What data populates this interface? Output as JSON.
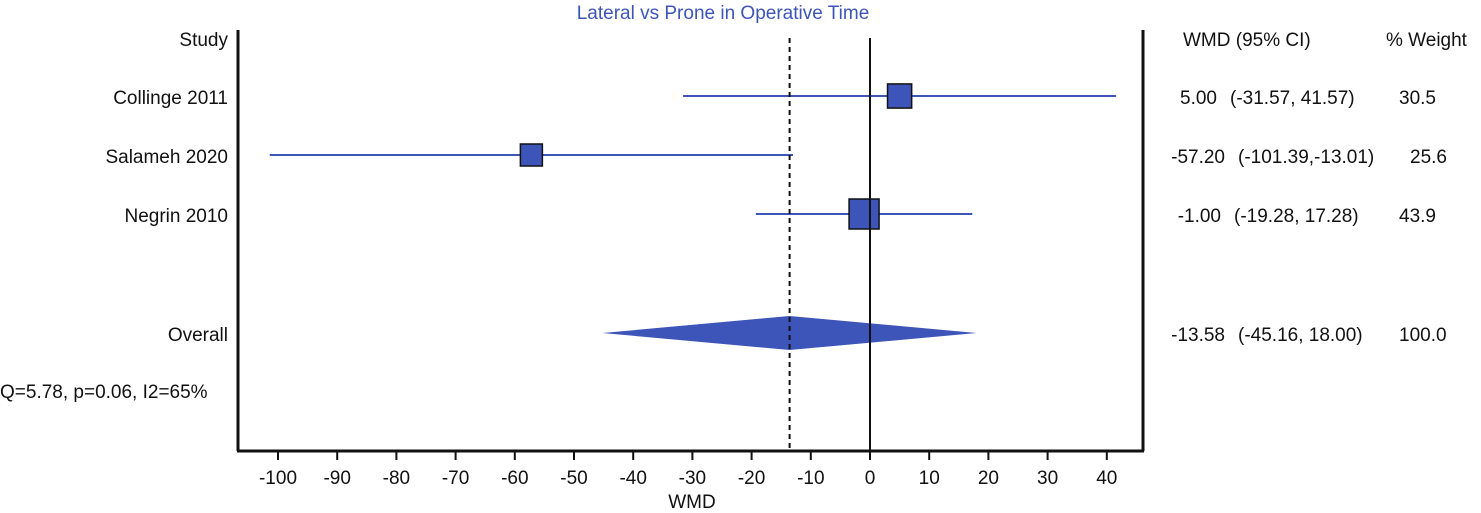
{
  "chart_data": {
    "type": "forest",
    "title": "Lateral vs Prone in Operative Time",
    "xlabel": "WMD",
    "xlim": [
      -110,
      45
    ],
    "xticks": [
      -100,
      -90,
      -80,
      -70,
      -60,
      -50,
      -40,
      -30,
      -20,
      -10,
      0,
      10,
      20,
      30,
      40
    ],
    "null_line": 0,
    "pooled_line": -13.58,
    "columns": {
      "study": "Study",
      "effect": "WMD (95% CI)",
      "weight": "% Weight"
    },
    "studies": [
      {
        "name": "Collinge 2011",
        "wmd": 5.0,
        "lower": -31.57,
        "upper": 41.57,
        "effect_text": "5.00",
        "ci_text": "(-31.57, 41.57)",
        "weight": 30.5,
        "weight_text": "30.5"
      },
      {
        "name": "Salameh 2020",
        "wmd": -57.2,
        "lower": -101.39,
        "upper": -13.01,
        "effect_text": "-57.20",
        "ci_text": "(-101.39,-13.01)",
        "weight": 25.6,
        "weight_text": "25.6"
      },
      {
        "name": "Negrin 2010",
        "wmd": -1.0,
        "lower": -19.28,
        "upper": 17.28,
        "effect_text": "-1.00",
        "ci_text": "(-19.28, 17.28)",
        "weight": 43.9,
        "weight_text": "43.9"
      }
    ],
    "overall": {
      "name": "Overall",
      "wmd": -13.58,
      "lower": -45.16,
      "upper": 18.0,
      "effect_text": "-13.58",
      "ci_text": "(-45.16, 18.00)",
      "weight_text": "100.0"
    },
    "heterogeneity": "Q=5.78, p=0.06, I2=65%",
    "colors": {
      "marker": "#3d55b8",
      "ci_line": "#3d55b8",
      "text": "#111111",
      "title": "#3d55b8"
    }
  }
}
